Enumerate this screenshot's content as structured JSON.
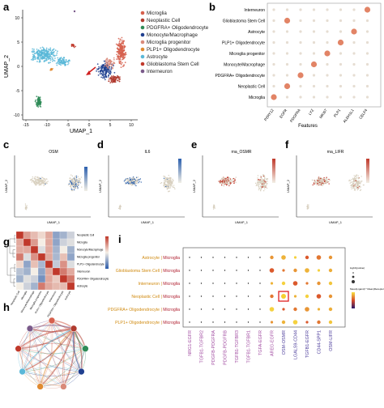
{
  "panels": {
    "a": {
      "label": "a",
      "x_label": "UMAP_1",
      "y_label": "UMAP_2",
      "x_ticks": [
        "-15",
        "-10",
        "-5",
        "0",
        "5",
        "10"
      ],
      "y_ticks": [
        "10",
        "5",
        "0",
        "-5",
        "-10"
      ],
      "legend": [
        {
          "name": "Microglia",
          "color": "#d6604d"
        },
        {
          "name": "Neoplastic Cell",
          "color": "#b03a2e"
        },
        {
          "name": "PDGFRA+ Oligodendrocyte",
          "color": "#2e8b57"
        },
        {
          "name": "Monocyte/Macrophage",
          "color": "#1f3f8f"
        },
        {
          "name": "Microglia progenitor",
          "color": "#d98a7a"
        },
        {
          "name": "PLP1+ Oligodendrocyte",
          "color": "#e08a30"
        },
        {
          "name": "Astrocyte",
          "color": "#5bb8d8"
        },
        {
          "name": "Glioblastoma Stem Cell",
          "color": "#c0392b"
        },
        {
          "name": "Interneuron",
          "color": "#7a5a8a"
        }
      ]
    },
    "b": {
      "label": "b",
      "x_title": "Features",
      "rows": [
        "Interneuron",
        "Glioblastoma Stem Cell",
        "Astrocyte",
        "PLP1+ Oligodendrocyte",
        "Microglia progenitor",
        "Monocyte/Macrophage",
        "PDGFRA+ Oligodendrocyte",
        "Neoplastic Cell",
        "Microglia"
      ],
      "cols": [
        "P2RY12",
        "EGFR",
        "PDGFRA",
        "LYZ",
        "MKI67",
        "PLP1",
        "ALDH1L1",
        "CELF4"
      ],
      "highlights": [
        [
          0,
          7
        ],
        [
          1,
          1
        ],
        [
          2,
          6
        ],
        [
          3,
          5
        ],
        [
          4,
          4
        ],
        [
          5,
          3
        ],
        [
          6,
          2
        ],
        [
          7,
          1
        ],
        [
          8,
          0
        ]
      ]
    },
    "c": {
      "label": "c",
      "title": "OSM",
      "x_label": "UMAP_1",
      "y_label": "UMAP_2"
    },
    "d": {
      "label": "d",
      "title": "IL6",
      "x_label": "UMAP_1",
      "y_label": "UMAP_2"
    },
    "e": {
      "label": "e",
      "title": "rna_OSMR",
      "x_label": "UMAP_1",
      "y_label": "UMAP_2"
    },
    "f": {
      "label": "f",
      "title": "rna_LIFR",
      "x_label": "UMAP_1",
      "y_label": "UMAP_2"
    },
    "g": {
      "label": "g",
      "rows": [
        "Neoplastic Cell",
        "Microglia",
        "Monocyte/Macrophage",
        "Microglia progenitor",
        "PLP1+ Oligodendrocyte",
        "Interneuron",
        "PDGFRA+ Oligodendrocyte",
        "Astrocyte"
      ]
    },
    "h": {
      "label": "h"
    },
    "i": {
      "label": "i",
      "target": "Microglia",
      "sources": [
        "Astrocyte",
        "Glioblastoma Stem Cell",
        "Interneuron",
        "Neoplastic Cell",
        "PDGFRA+ Oligodendrocyte",
        "PLP1+ Oligodendrocyte"
      ],
      "pairs": [
        "NRG1-EGFR",
        "TGFB1-TGFBR2",
        "PDGFB-PDGFRA",
        "PDGFB-PDGFRB",
        "TGFB1-TGFBR3",
        "TGFB1-TGFBR1",
        "TGFA-EGFR",
        "AREG-EGFR",
        "OSM-OSMR",
        "LGALS9-CD44",
        "TGFB1-EGFR",
        "CD44-SPP1",
        "OSM-LIFR"
      ],
      "legend_title_size": "log10(pvalue)",
      "legend_title_color": "Mean(Ligand) * Mean(Receptor)",
      "highlight": {
        "row": 3,
        "col": 8
      }
    }
  },
  "colors": {
    "accent_red": "#e04030",
    "heat_dark": "#2b1a6b",
    "heat_mid": "#f0a020",
    "blue": "#3a6bb0"
  }
}
